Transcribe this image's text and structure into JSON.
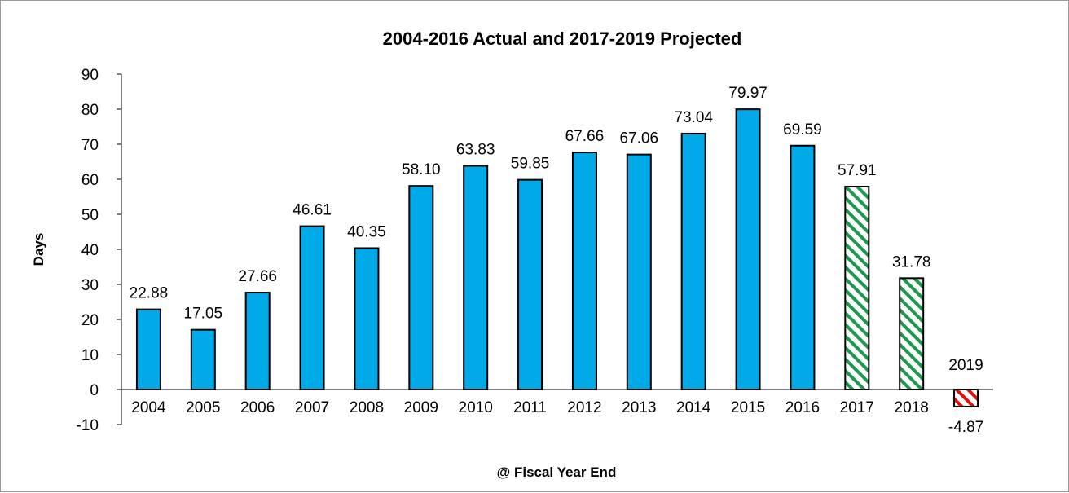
{
  "chart_data": {
    "type": "bar",
    "title": "2004-2016 Actual and 2017-2019 Projected",
    "xlabel": "@ Fiscal Year End",
    "ylabel": "Days",
    "ylim": [
      -10,
      90
    ],
    "yticks": [
      "90",
      "80",
      "70",
      "60",
      "50",
      "40",
      "30",
      "20",
      "10",
      "0",
      "-10"
    ],
    "ytick_values": [
      90,
      80,
      70,
      60,
      50,
      40,
      30,
      20,
      10,
      0,
      -10
    ],
    "categories": [
      "2004",
      "2005",
      "2006",
      "2007",
      "2008",
      "2009",
      "2010",
      "2011",
      "2012",
      "2013",
      "2014",
      "2015",
      "2016",
      "2017",
      "2018",
      "2019"
    ],
    "values": [
      22.88,
      17.05,
      27.66,
      46.61,
      40.35,
      58.1,
      63.83,
      59.85,
      67.66,
      67.06,
      73.04,
      79.97,
      69.59,
      57.91,
      31.78,
      -4.87
    ],
    "data_labels": [
      "22.88",
      "17.05",
      "27.66",
      "46.61",
      "40.35",
      "58.10",
      "63.83",
      "59.85",
      "67.66",
      "67.06",
      "73.04",
      "79.97",
      "69.59",
      "57.91",
      "31.78",
      "-4.87"
    ],
    "bar_styles": [
      "actual",
      "actual",
      "actual",
      "actual",
      "actual",
      "actual",
      "actual",
      "actual",
      "actual",
      "actual",
      "actual",
      "actual",
      "actual",
      "projected",
      "projected",
      "projected-negative"
    ],
    "grid": false,
    "legend": "none",
    "colors": {
      "actual": "#00a9e8",
      "projected_hatch": "#1a9a4a",
      "negative_hatch": "#e01010",
      "negative_label": "#e01010",
      "bar_outline": "#000000"
    }
  }
}
